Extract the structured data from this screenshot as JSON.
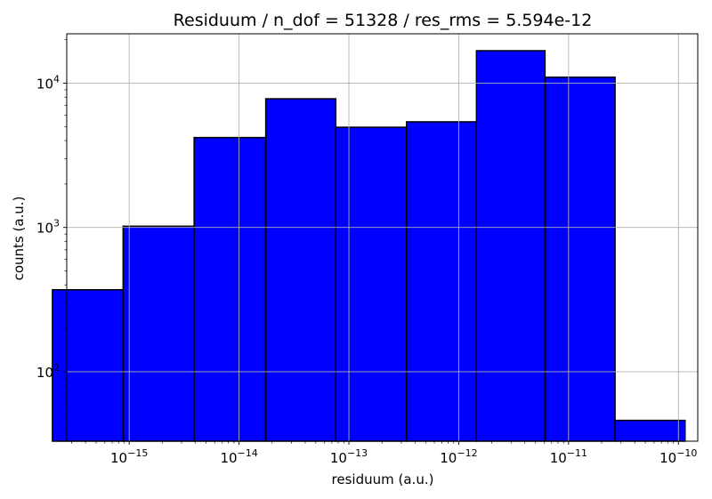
{
  "chart_data": {
    "type": "bar",
    "title": "Residuum / n_dof = 51328 / res_rms = 5.594e-12",
    "xlabel": "residuum (a.u.)",
    "ylabel": "counts (a.u.)",
    "xscale": "log",
    "yscale": "log",
    "xlim": [
      2.7e-16,
      1.5e-10
    ],
    "ylim": [
      33,
      22000
    ],
    "grid": true,
    "bar_color": "#0000ff",
    "edge_color": "#000000",
    "x_tick_labels": [
      {
        "base": "10",
        "exp": "−15",
        "value": 1e-15
      },
      {
        "base": "10",
        "exp": "−14",
        "value": 1e-14
      },
      {
        "base": "10",
        "exp": "−13",
        "value": 1e-13
      },
      {
        "base": "10",
        "exp": "−12",
        "value": 1e-12
      },
      {
        "base": "10",
        "exp": "−11",
        "value": 1e-11
      },
      {
        "base": "10",
        "exp": "−10",
        "value": 1e-10
      }
    ],
    "y_tick_labels": [
      {
        "base": "10",
        "exp": "2",
        "value": 100
      },
      {
        "base": "10",
        "exp": "3",
        "value": 1000
      },
      {
        "base": "10",
        "exp": "4",
        "value": 10000
      }
    ],
    "bins": [
      {
        "x_start": 2e-16,
        "x_end": 8.8e-16,
        "count": 370
      },
      {
        "x_start": 8.8e-16,
        "x_end": 3.9e-15,
        "count": 1020
      },
      {
        "x_start": 3.9e-15,
        "x_end": 1.75e-14,
        "count": 4200
      },
      {
        "x_start": 1.75e-14,
        "x_end": 7.6e-14,
        "count": 7800
      },
      {
        "x_start": 7.6e-14,
        "x_end": 3.35e-13,
        "count": 4950
      },
      {
        "x_start": 3.35e-13,
        "x_end": 1.45e-12,
        "count": 5400
      },
      {
        "x_start": 1.45e-12,
        "x_end": 6.1e-12,
        "count": 16800
      },
      {
        "x_start": 6.1e-12,
        "x_end": 2.65e-11,
        "count": 11000
      },
      {
        "x_start": 2.65e-11,
        "x_end": 1.15e-10,
        "count": 46
      }
    ]
  }
}
